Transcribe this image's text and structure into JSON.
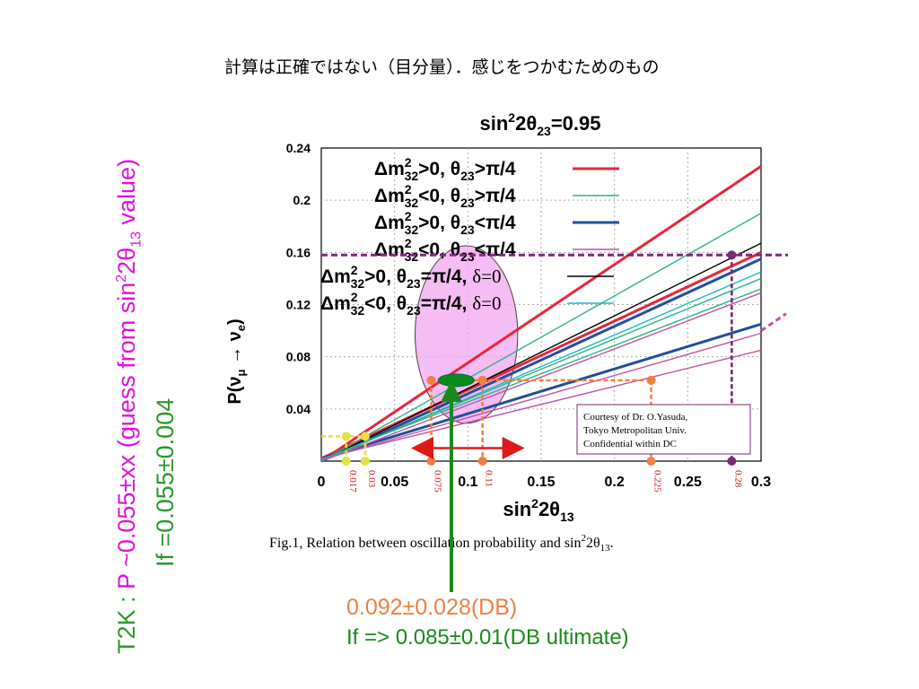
{
  "note": "計算は正確ではない（目分量）．感じをつかむためのもの",
  "side_left": {
    "prefix": "T2K : ",
    "main": "P ~0.055±xx  (guess from sin",
    "sup": "2",
    "mid": "2θ",
    "sub": "13",
    "suffix": " value)"
  },
  "side_right": "If =0.055±0.004",
  "bottom": {
    "line1": "0.092±0.028(DB)",
    "line2": "If => 0.085±0.01(DB ultimate)"
  },
  "courtesy": [
    "Courtesy of  Dr. O.Yasuda,",
    "Tokyo Metropolitan Univ.",
    "Confidential within DC"
  ],
  "caption": "Fig.1, Relation between oscillation probability and sin²2θ₁₃.",
  "colors": {
    "red": "#e8253a",
    "green": "#2bb585",
    "blue": "#214f9a",
    "pink": "#c452a6",
    "black": "#000000",
    "cyan": "#19b9c9",
    "purple": "#7a2a7a",
    "orange": "#f08040",
    "magenta_blob": "#f3a6f0",
    "arrow_green": "#1a8a1a",
    "arrow_red": "#e01818"
  },
  "chart_data": {
    "type": "line",
    "title": "sin²2θ₂₃=0.95",
    "xlabel": "sin²2θ₁₃",
    "ylabel": "P(ν_μ → ν_e)",
    "xlim": [
      0,
      0.3
    ],
    "ylim": [
      0,
      0.24
    ],
    "xticks": [
      "0",
      "0.05",
      "0.1",
      "0.15",
      "0.2",
      "0.25",
      "0.3"
    ],
    "yticks": [
      "0.04",
      "0.08",
      "0.12",
      "0.16",
      "0.2",
      "0.24"
    ],
    "grid": true,
    "legend": [
      {
        "label": "Δm²₃₂>0, θ₂₃>π/4",
        "color": "red"
      },
      {
        "label": "Δm²₃₂<0, θ₂₃>π/4",
        "color": "green"
      },
      {
        "label": "Δm²₃₂>0, θ₂₃<π/4",
        "color": "blue"
      },
      {
        "label": "Δm²₃₂<0, θ₂₃<π/4",
        "color": "pink"
      },
      {
        "label": "Δm²₃₂>0, θ₂₃=π/4, δ=0",
        "color": "black"
      },
      {
        "label": "Δm²₃₂<0, θ₂₃=π/4, δ=0",
        "color": "cyan"
      }
    ],
    "series": [
      {
        "name": "Δm²₃₂>0, θ₂₃>π/4",
        "color": "red",
        "x": [
          0,
          0.3
        ],
        "y": [
          0,
          0.226
        ],
        "width": 3
      },
      {
        "color": "red",
        "x": [
          0,
          0.3
        ],
        "y": [
          0.002,
          0.16
        ],
        "width": 3
      },
      {
        "name": "Δm²₃₂<0, θ₂₃>π/4",
        "color": "green",
        "x": [
          0,
          0.3
        ],
        "y": [
          0,
          0.19
        ],
        "width": 1.4
      },
      {
        "color": "green",
        "x": [
          0,
          0.3
        ],
        "y": [
          0.002,
          0.132
        ],
        "width": 1.4
      },
      {
        "name": "Δm²₃₂>0, θ₂₃<π/4",
        "color": "blue",
        "x": [
          0,
          0.3
        ],
        "y": [
          0,
          0.155
        ],
        "width": 3
      },
      {
        "color": "blue",
        "x": [
          0,
          0.3
        ],
        "y": [
          0.002,
          0.105
        ],
        "width": 3
      },
      {
        "name": "Δm²₃₂<0, θ₂₃<π/4",
        "color": "pink",
        "x": [
          0,
          0.3
        ],
        "y": [
          0,
          0.129
        ],
        "width": 1.4
      },
      {
        "color": "pink",
        "x": [
          0,
          0.3
        ],
        "y": [
          0.002,
          0.085
        ],
        "width": 1.4
      },
      {
        "name": "Δm²₃₂>0, θ₂₃=π/4, δ=0",
        "color": "black",
        "x": [
          0,
          0.3
        ],
        "y": [
          0,
          0.167
        ],
        "width": 1.4
      },
      {
        "name": "Δm²₃₂<0, θ₂₃=π/4, δ=0",
        "color": "cyan",
        "x": [
          0,
          0.3
        ],
        "y": [
          0,
          0.145
        ],
        "width": 1.4
      },
      {
        "color": "green",
        "x": [
          0,
          0.3
        ],
        "y": [
          0.001,
          0.14
        ],
        "width": 1.4
      },
      {
        "color": "pink",
        "x": [
          0,
          0.3
        ],
        "y": [
          0.001,
          0.098
        ],
        "width": 1.4
      }
    ],
    "horizontal_line": {
      "y": 0.158,
      "color": "purple"
    },
    "markers": [
      {
        "x": 0.017,
        "label": "0.017",
        "color": "#e6e040",
        "y": 0.019
      },
      {
        "x": 0.03,
        "label": "0.03",
        "color": "#e6e040",
        "y": 0.019
      },
      {
        "x": 0.075,
        "label": "0.075",
        "color": "orange",
        "y": 0.062
      },
      {
        "x": 0.11,
        "label": "0.11",
        "color": "orange",
        "y": 0.062
      },
      {
        "x": 0.225,
        "label": "0.225",
        "color": "orange",
        "y": 0.062
      },
      {
        "x": 0.28,
        "label": "0.28",
        "color": "purple",
        "y": 0.158
      }
    ],
    "range_arrow": {
      "x_from": 0.075,
      "x_to": 0.125,
      "y": 0.01
    },
    "ellipse": {
      "cx": 0.099,
      "cy": 0.097,
      "rx": 0.035,
      "ry": 0.068
    },
    "central_point": {
      "x": 0.092,
      "y": 0.062
    }
  }
}
